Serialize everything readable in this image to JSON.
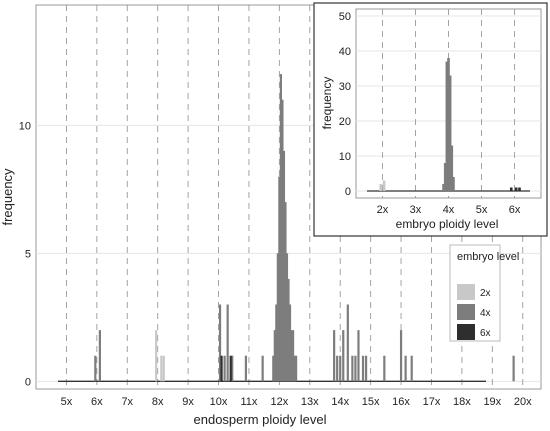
{
  "chart_data": [
    {
      "type": "bar",
      "panel": "main",
      "xlabel": "endosperm ploidy level",
      "ylabel": "frequency",
      "x_ticks": [
        "5x",
        "6x",
        "7x",
        "8x",
        "9x",
        "10x",
        "11x",
        "12x",
        "13x",
        "14x",
        "15x",
        "16x",
        "17x",
        "18x",
        "19x",
        "20x"
      ],
      "xlim": [
        4.0,
        20.6
      ],
      "y_ticks": [
        0,
        5,
        10
      ],
      "ylim": [
        -0.3,
        14.7
      ],
      "grid": {
        "horizontal": true,
        "vertical_dashed_at_ticks": true
      },
      "legend": {
        "title": "embryo level",
        "placement": "bottom-right",
        "entries": [
          {
            "label": "2x",
            "color": "#c8c8c8"
          },
          {
            "label": "4x",
            "color": "#7d7d7d"
          },
          {
            "label": "6x",
            "color": "#2e2e2e"
          }
        ]
      },
      "series": [
        {
          "name": "2x",
          "color": "#c8c8c8",
          "x": [
            7.95,
            8.12,
            8.2
          ],
          "y": [
            2,
            1,
            1
          ]
        },
        {
          "name": "4x",
          "color": "#7d7d7d",
          "x": [
            5.95,
            6.1,
            10.05,
            10.2,
            10.3,
            10.45,
            10.9,
            11.45,
            11.8,
            11.85,
            11.9,
            11.95,
            12.0,
            12.05,
            12.1,
            12.15,
            12.2,
            12.25,
            12.3,
            12.35,
            12.4,
            12.45,
            12.5,
            12.55,
            13.8,
            13.9,
            14.0,
            14.1,
            14.25,
            14.4,
            14.5,
            14.6,
            14.75,
            14.85,
            15.45,
            16.0,
            16.15,
            16.35,
            19.7
          ],
          "y": [
            1,
            2,
            3,
            1,
            3,
            1,
            1,
            1,
            1,
            2,
            3,
            5,
            8,
            12,
            11,
            9,
            7,
            5,
            4,
            3,
            2,
            2,
            1,
            1,
            2,
            1,
            1,
            2,
            3,
            1,
            1,
            2,
            1,
            1,
            1,
            2,
            1,
            1,
            1
          ]
        },
        {
          "name": "6x",
          "color": "#2e2e2e",
          "x": [
            10.1,
            10.4
          ],
          "y": [
            1,
            1
          ]
        }
      ]
    },
    {
      "type": "bar",
      "panel": "inset",
      "xlabel": "embryo ploidy level",
      "ylabel": "frequency",
      "x_ticks": [
        "2x",
        "3x",
        "4x",
        "5x",
        "6x"
      ],
      "xlim": [
        1.2,
        6.8
      ],
      "y_ticks": [
        0,
        10,
        20,
        30,
        40,
        50
      ],
      "ylim": [
        -2,
        52
      ],
      "grid": {
        "horizontal": true,
        "vertical_dashed_at_ticks": true
      },
      "series": [
        {
          "name": "2x",
          "color": "#c8c8c8",
          "x": [
            1.95,
            2.05
          ],
          "y": [
            2,
            3
          ]
        },
        {
          "name": "4x",
          "color": "#7d7d7d",
          "x": [
            3.85,
            3.9,
            3.95,
            4.0,
            4.05,
            4.1,
            4.15
          ],
          "y": [
            2,
            8,
            37,
            38,
            33,
            13,
            4
          ]
        },
        {
          "name": "6x",
          "color": "#2e2e2e",
          "x": [
            5.9,
            6.05,
            6.15
          ],
          "y": [
            1,
            1,
            1
          ]
        }
      ]
    }
  ]
}
